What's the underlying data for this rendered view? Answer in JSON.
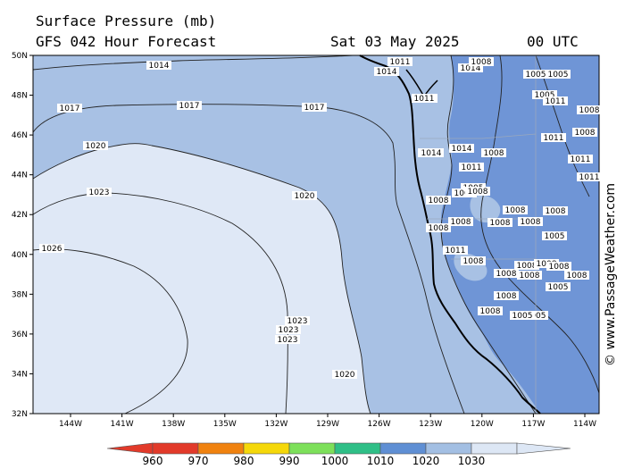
{
  "header": {
    "title": "Surface Pressure (mb)",
    "subtitle": "GFS 042 Hour Forecast",
    "date": "Sat 03 May 2025",
    "time": "00 UTC"
  },
  "credit": "© www.PassageWeather.com",
  "axes": {
    "lat_labels": [
      "50N",
      "48N",
      "46N",
      "44N",
      "42N",
      "40N",
      "38N",
      "36N",
      "34N",
      "32N"
    ],
    "lon_labels": [
      "144W",
      "141W",
      "138W",
      "135W",
      "132W",
      "129W",
      "126W",
      "123W",
      "120W",
      "117W",
      "114W"
    ]
  },
  "isobar_labels": {
    "ocean": [
      "1014",
      "1017",
      "1017",
      "1017",
      "1020",
      "1023",
      "1026",
      "1020",
      "1023",
      "1023",
      "1023",
      "1020",
      "1011",
      "1014"
    ],
    "land": [
      "1011",
      "1014",
      "1011",
      "1014",
      "1008",
      "1005",
      "1005",
      "1005",
      "1011",
      "1008",
      "1011",
      "1008",
      "1011",
      "1011",
      "1014",
      "1014",
      "1011",
      "1008",
      "1005",
      "1005",
      "1008",
      "1008",
      "1008",
      "1008",
      "1008",
      "1008",
      "1008",
      "1005",
      "1008",
      "1008",
      "1008",
      "1011",
      "1008",
      "1008",
      "1008",
      "1008",
      "1008",
      "1008",
      "1008",
      "1005",
      "1005",
      "1005"
    ]
  },
  "colorbar": {
    "labels": [
      "960",
      "970",
      "980",
      "990",
      "1000",
      "1010",
      "1020",
      "1030"
    ],
    "colors": [
      "#e23a2a",
      "#f0820f",
      "#f5d80a",
      "#7de05a",
      "#2fbf87",
      "#5f8fd4",
      "#a3bfe3",
      "#dde7f5"
    ]
  },
  "colors": {
    "band_1000_1010": "#6f95d6",
    "band_1010_1020": "#a8c1e4",
    "band_1020_1030": "#dfe8f6"
  }
}
